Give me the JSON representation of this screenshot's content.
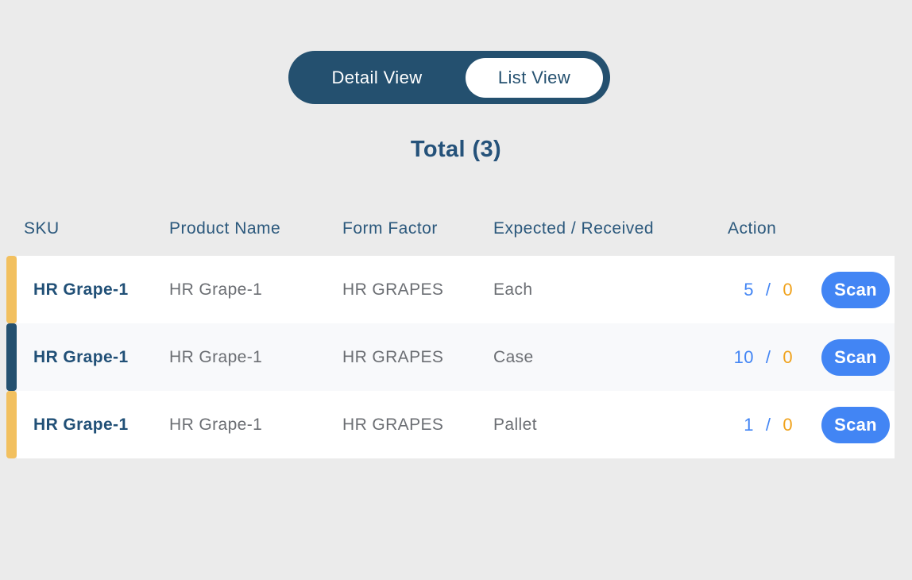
{
  "colors": {
    "page_bg": "#ebebeb",
    "navy_fill": "#24506f",
    "navy_text": "#25527a",
    "gray_text": "#6b6e73",
    "row_bg": "#ffffff",
    "row_alt_bg": "#f8f9fb",
    "action_blue": "#4285f4",
    "received_orange": "#f0a21c",
    "accent_yellow": "#f2c05f",
    "accent_navy": "#24506f"
  },
  "view_toggle": {
    "options": [
      {
        "label": "Detail View",
        "active": false
      },
      {
        "label": "List View",
        "active": true
      }
    ]
  },
  "summary": {
    "total_label": "Total (3)"
  },
  "table": {
    "columns": [
      "SKU",
      "Product Name",
      "Form Factor",
      "Expected / Received",
      "Action"
    ],
    "separator": "/",
    "rows": [
      {
        "sku": "HR Grape-1",
        "product_name": "HR Grape-1",
        "form_factor": "HR GRAPES",
        "uom": "Each",
        "expected": "5",
        "received": "0",
        "action_label": "Scan",
        "accent": "accent_yellow"
      },
      {
        "sku": "HR Grape-1",
        "product_name": "HR Grape-1",
        "form_factor": "HR GRAPES",
        "uom": "Case",
        "expected": "10",
        "received": "0",
        "action_label": "Scan",
        "accent": "accent_navy"
      },
      {
        "sku": "HR Grape-1",
        "product_name": "HR Grape-1",
        "form_factor": "HR GRAPES",
        "uom": "Pallet",
        "expected": "1",
        "received": "0",
        "action_label": "Scan",
        "accent": "accent_yellow"
      }
    ]
  }
}
